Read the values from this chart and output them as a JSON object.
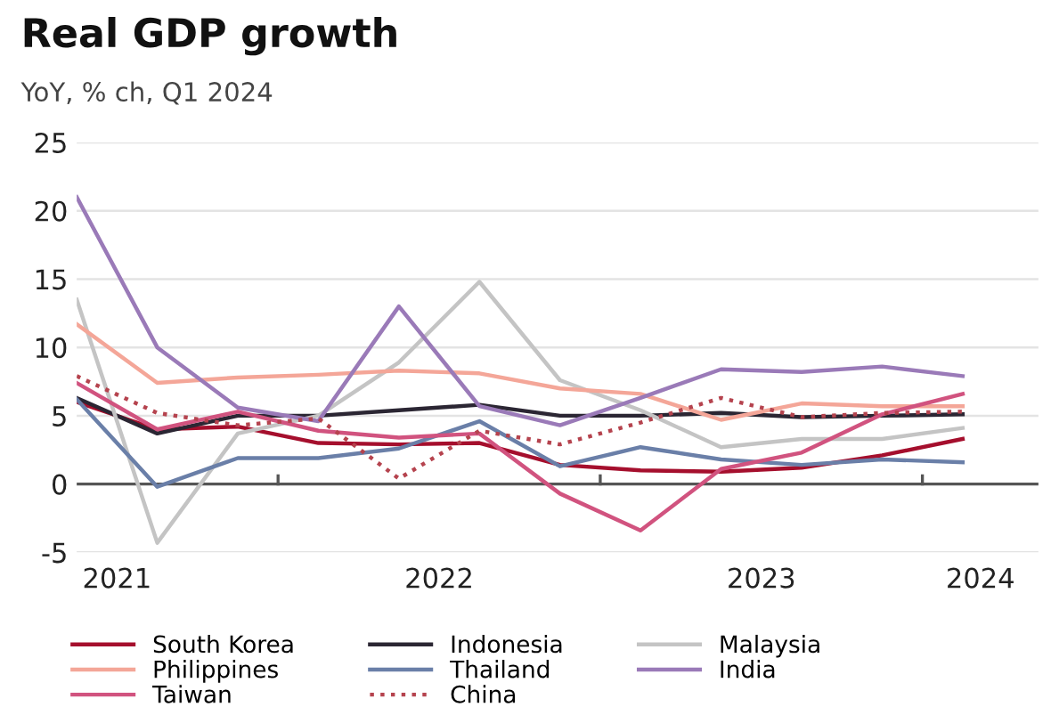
{
  "chart_data": {
    "type": "line",
    "title": "Real GDP growth",
    "subtitle": "YoY, % ch, Q1 2024",
    "x": [
      2021.375,
      2021.625,
      2021.875,
      2022.125,
      2022.375,
      2022.625,
      2022.875,
      2023.125,
      2023.375,
      2023.625,
      2023.875,
      2024.125
    ],
    "xlim": [
      2021.375,
      2024.36
    ],
    "xticks": [
      {
        "value": 2021.5,
        "label": "2021"
      },
      {
        "value": 2022,
        "label": null
      },
      {
        "value": 2022.5,
        "label": "2022"
      },
      {
        "value": 2023,
        "label": null
      },
      {
        "value": 2023.5,
        "label": "2023"
      },
      {
        "value": 2024,
        "label": null
      },
      {
        "value": 2024.18,
        "label": "2024"
      }
    ],
    "ylim": [
      -5,
      25
    ],
    "yticks": [
      -5,
      0,
      5,
      10,
      15,
      20,
      25
    ],
    "grid": "y",
    "ref_lines": [
      {
        "axis": "y",
        "value": 0,
        "color": "#555555"
      }
    ],
    "legend": "bottom",
    "series": [
      {
        "name": "South Korea",
        "color": "#a50f2d",
        "values": [
          6.0,
          4.0,
          4.2,
          3.0,
          2.9,
          3.0,
          1.4,
          1.0,
          0.9,
          1.2,
          2.1,
          3.3
        ]
      },
      {
        "name": "Indonesia",
        "color": "#2b2633",
        "values": [
          6.3,
          3.7,
          5.0,
          5.0,
          5.4,
          5.8,
          5.0,
          5.0,
          5.2,
          4.9,
          5.0,
          5.1
        ]
      },
      {
        "name": "Malaysia",
        "color": "#c4c4c4",
        "values": [
          13.5,
          -4.3,
          3.7,
          5.0,
          8.9,
          14.8,
          7.6,
          5.4,
          2.7,
          3.3,
          3.3,
          4.1
        ]
      },
      {
        "name": "Philippines",
        "color": "#f4a698",
        "values": [
          11.7,
          7.4,
          7.8,
          8.0,
          8.3,
          8.1,
          7.0,
          6.6,
          4.7,
          5.9,
          5.7,
          5.7
        ]
      },
      {
        "name": "Thailand",
        "color": "#6a7fa8",
        "values": [
          6.2,
          -0.2,
          1.9,
          1.9,
          2.6,
          4.6,
          1.3,
          2.7,
          1.8,
          1.4,
          1.8,
          1.6
        ]
      },
      {
        "name": "India",
        "color": "#9a7ab8",
        "values": [
          21.0,
          10.0,
          5.6,
          4.6,
          13.0,
          5.7,
          4.3,
          6.3,
          8.4,
          8.2,
          8.6,
          7.9
        ]
      },
      {
        "name": "Taiwan",
        "color": "#d1537f",
        "values": [
          7.4,
          4.0,
          5.3,
          3.9,
          3.4,
          3.7,
          -0.7,
          -3.4,
          1.1,
          2.3,
          5.1,
          6.6
        ]
      },
      {
        "name": "China",
        "color": "#b5434e",
        "line_style": "dotted",
        "values": [
          7.9,
          5.2,
          4.3,
          4.8,
          0.4,
          3.9,
          2.9,
          4.5,
          6.3,
          4.9,
          5.2,
          5.3
        ]
      }
    ]
  }
}
